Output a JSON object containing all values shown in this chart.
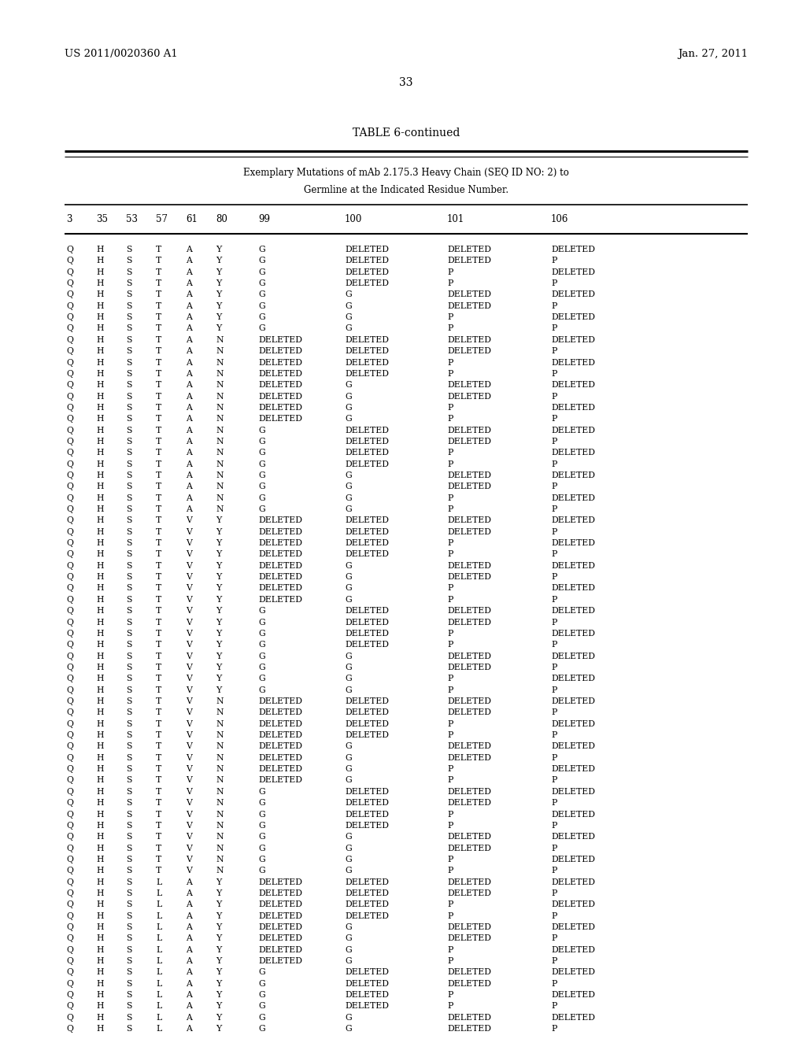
{
  "header_left": "US 2011/0020360 A1",
  "header_right": "Jan. 27, 2011",
  "page_number": "33",
  "table_title": "TABLE 6-continued",
  "table_subtitle1": "Exemplary Mutations of mAb 2.175.3 Heavy Chain (SEQ ID NO: 2) to",
  "table_subtitle2": "Germline at the Indicated Residue Number.",
  "col_headers": [
    "3",
    "35",
    "53",
    "57",
    "61",
    "80",
    "99",
    "100",
    "101",
    "106"
  ],
  "rows": [
    [
      "Q",
      "H",
      "S",
      "T",
      "A",
      "Y",
      "G",
      "DELETED",
      "DELETED",
      "DELETED"
    ],
    [
      "Q",
      "H",
      "S",
      "T",
      "A",
      "Y",
      "G",
      "DELETED",
      "DELETED",
      "P"
    ],
    [
      "Q",
      "H",
      "S",
      "T",
      "A",
      "Y",
      "G",
      "DELETED",
      "P",
      "DELETED"
    ],
    [
      "Q",
      "H",
      "S",
      "T",
      "A",
      "Y",
      "G",
      "DELETED",
      "P",
      "P"
    ],
    [
      "Q",
      "H",
      "S",
      "T",
      "A",
      "Y",
      "G",
      "G",
      "DELETED",
      "DELETED"
    ],
    [
      "Q",
      "H",
      "S",
      "T",
      "A",
      "Y",
      "G",
      "G",
      "DELETED",
      "P"
    ],
    [
      "Q",
      "H",
      "S",
      "T",
      "A",
      "Y",
      "G",
      "G",
      "P",
      "DELETED"
    ],
    [
      "Q",
      "H",
      "S",
      "T",
      "A",
      "Y",
      "G",
      "G",
      "P",
      "P"
    ],
    [
      "Q",
      "H",
      "S",
      "T",
      "A",
      "N",
      "DELETED",
      "DELETED",
      "DELETED",
      "DELETED"
    ],
    [
      "Q",
      "H",
      "S",
      "T",
      "A",
      "N",
      "DELETED",
      "DELETED",
      "DELETED",
      "P"
    ],
    [
      "Q",
      "H",
      "S",
      "T",
      "A",
      "N",
      "DELETED",
      "DELETED",
      "P",
      "DELETED"
    ],
    [
      "Q",
      "H",
      "S",
      "T",
      "A",
      "N",
      "DELETED",
      "DELETED",
      "P",
      "P"
    ],
    [
      "Q",
      "H",
      "S",
      "T",
      "A",
      "N",
      "DELETED",
      "G",
      "DELETED",
      "DELETED"
    ],
    [
      "Q",
      "H",
      "S",
      "T",
      "A",
      "N",
      "DELETED",
      "G",
      "DELETED",
      "P"
    ],
    [
      "Q",
      "H",
      "S",
      "T",
      "A",
      "N",
      "DELETED",
      "G",
      "P",
      "DELETED"
    ],
    [
      "Q",
      "H",
      "S",
      "T",
      "A",
      "N",
      "DELETED",
      "G",
      "P",
      "P"
    ],
    [
      "Q",
      "H",
      "S",
      "T",
      "A",
      "N",
      "G",
      "DELETED",
      "DELETED",
      "DELETED"
    ],
    [
      "Q",
      "H",
      "S",
      "T",
      "A",
      "N",
      "G",
      "DELETED",
      "DELETED",
      "P"
    ],
    [
      "Q",
      "H",
      "S",
      "T",
      "A",
      "N",
      "G",
      "DELETED",
      "P",
      "DELETED"
    ],
    [
      "Q",
      "H",
      "S",
      "T",
      "A",
      "N",
      "G",
      "DELETED",
      "P",
      "P"
    ],
    [
      "Q",
      "H",
      "S",
      "T",
      "A",
      "N",
      "G",
      "G",
      "DELETED",
      "DELETED"
    ],
    [
      "Q",
      "H",
      "S",
      "T",
      "A",
      "N",
      "G",
      "G",
      "DELETED",
      "P"
    ],
    [
      "Q",
      "H",
      "S",
      "T",
      "A",
      "N",
      "G",
      "G",
      "P",
      "DELETED"
    ],
    [
      "Q",
      "H",
      "S",
      "T",
      "A",
      "N",
      "G",
      "G",
      "P",
      "P"
    ],
    [
      "Q",
      "H",
      "S",
      "T",
      "V",
      "Y",
      "DELETED",
      "DELETED",
      "DELETED",
      "DELETED"
    ],
    [
      "Q",
      "H",
      "S",
      "T",
      "V",
      "Y",
      "DELETED",
      "DELETED",
      "DELETED",
      "P"
    ],
    [
      "Q",
      "H",
      "S",
      "T",
      "V",
      "Y",
      "DELETED",
      "DELETED",
      "P",
      "DELETED"
    ],
    [
      "Q",
      "H",
      "S",
      "T",
      "V",
      "Y",
      "DELETED",
      "DELETED",
      "P",
      "P"
    ],
    [
      "Q",
      "H",
      "S",
      "T",
      "V",
      "Y",
      "DELETED",
      "G",
      "DELETED",
      "DELETED"
    ],
    [
      "Q",
      "H",
      "S",
      "T",
      "V",
      "Y",
      "DELETED",
      "G",
      "DELETED",
      "P"
    ],
    [
      "Q",
      "H",
      "S",
      "T",
      "V",
      "Y",
      "DELETED",
      "G",
      "P",
      "DELETED"
    ],
    [
      "Q",
      "H",
      "S",
      "T",
      "V",
      "Y",
      "DELETED",
      "G",
      "P",
      "P"
    ],
    [
      "Q",
      "H",
      "S",
      "T",
      "V",
      "Y",
      "G",
      "DELETED",
      "DELETED",
      "DELETED"
    ],
    [
      "Q",
      "H",
      "S",
      "T",
      "V",
      "Y",
      "G",
      "DELETED",
      "DELETED",
      "P"
    ],
    [
      "Q",
      "H",
      "S",
      "T",
      "V",
      "Y",
      "G",
      "DELETED",
      "P",
      "DELETED"
    ],
    [
      "Q",
      "H",
      "S",
      "T",
      "V",
      "Y",
      "G",
      "DELETED",
      "P",
      "P"
    ],
    [
      "Q",
      "H",
      "S",
      "T",
      "V",
      "Y",
      "G",
      "G",
      "DELETED",
      "DELETED"
    ],
    [
      "Q",
      "H",
      "S",
      "T",
      "V",
      "Y",
      "G",
      "G",
      "DELETED",
      "P"
    ],
    [
      "Q",
      "H",
      "S",
      "T",
      "V",
      "Y",
      "G",
      "G",
      "P",
      "DELETED"
    ],
    [
      "Q",
      "H",
      "S",
      "T",
      "V",
      "Y",
      "G",
      "G",
      "P",
      "P"
    ],
    [
      "Q",
      "H",
      "S",
      "T",
      "V",
      "N",
      "DELETED",
      "DELETED",
      "DELETED",
      "DELETED"
    ],
    [
      "Q",
      "H",
      "S",
      "T",
      "V",
      "N",
      "DELETED",
      "DELETED",
      "DELETED",
      "P"
    ],
    [
      "Q",
      "H",
      "S",
      "T",
      "V",
      "N",
      "DELETED",
      "DELETED",
      "P",
      "DELETED"
    ],
    [
      "Q",
      "H",
      "S",
      "T",
      "V",
      "N",
      "DELETED",
      "DELETED",
      "P",
      "P"
    ],
    [
      "Q",
      "H",
      "S",
      "T",
      "V",
      "N",
      "DELETED",
      "G",
      "DELETED",
      "DELETED"
    ],
    [
      "Q",
      "H",
      "S",
      "T",
      "V",
      "N",
      "DELETED",
      "G",
      "DELETED",
      "P"
    ],
    [
      "Q",
      "H",
      "S",
      "T",
      "V",
      "N",
      "DELETED",
      "G",
      "P",
      "DELETED"
    ],
    [
      "Q",
      "H",
      "S",
      "T",
      "V",
      "N",
      "DELETED",
      "G",
      "P",
      "P"
    ],
    [
      "Q",
      "H",
      "S",
      "T",
      "V",
      "N",
      "G",
      "DELETED",
      "DELETED",
      "DELETED"
    ],
    [
      "Q",
      "H",
      "S",
      "T",
      "V",
      "N",
      "G",
      "DELETED",
      "DELETED",
      "P"
    ],
    [
      "Q",
      "H",
      "S",
      "T",
      "V",
      "N",
      "G",
      "DELETED",
      "P",
      "DELETED"
    ],
    [
      "Q",
      "H",
      "S",
      "T",
      "V",
      "N",
      "G",
      "DELETED",
      "P",
      "P"
    ],
    [
      "Q",
      "H",
      "S",
      "T",
      "V",
      "N",
      "G",
      "G",
      "DELETED",
      "DELETED"
    ],
    [
      "Q",
      "H",
      "S",
      "T",
      "V",
      "N",
      "G",
      "G",
      "DELETED",
      "P"
    ],
    [
      "Q",
      "H",
      "S",
      "T",
      "V",
      "N",
      "G",
      "G",
      "P",
      "DELETED"
    ],
    [
      "Q",
      "H",
      "S",
      "T",
      "V",
      "N",
      "G",
      "G",
      "P",
      "P"
    ],
    [
      "Q",
      "H",
      "S",
      "L",
      "A",
      "Y",
      "DELETED",
      "DELETED",
      "DELETED",
      "DELETED"
    ],
    [
      "Q",
      "H",
      "S",
      "L",
      "A",
      "Y",
      "DELETED",
      "DELETED",
      "DELETED",
      "P"
    ],
    [
      "Q",
      "H",
      "S",
      "L",
      "A",
      "Y",
      "DELETED",
      "DELETED",
      "P",
      "DELETED"
    ],
    [
      "Q",
      "H",
      "S",
      "L",
      "A",
      "Y",
      "DELETED",
      "DELETED",
      "P",
      "P"
    ],
    [
      "Q",
      "H",
      "S",
      "L",
      "A",
      "Y",
      "DELETED",
      "G",
      "DELETED",
      "DELETED"
    ],
    [
      "Q",
      "H",
      "S",
      "L",
      "A",
      "Y",
      "DELETED",
      "G",
      "DELETED",
      "P"
    ],
    [
      "Q",
      "H",
      "S",
      "L",
      "A",
      "Y",
      "DELETED",
      "G",
      "P",
      "DELETED"
    ],
    [
      "Q",
      "H",
      "S",
      "L",
      "A",
      "Y",
      "DELETED",
      "G",
      "P",
      "P"
    ],
    [
      "Q",
      "H",
      "S",
      "L",
      "A",
      "Y",
      "G",
      "DELETED",
      "DELETED",
      "DELETED"
    ],
    [
      "Q",
      "H",
      "S",
      "L",
      "A",
      "Y",
      "G",
      "DELETED",
      "DELETED",
      "P"
    ],
    [
      "Q",
      "H",
      "S",
      "L",
      "A",
      "Y",
      "G",
      "DELETED",
      "P",
      "DELETED"
    ],
    [
      "Q",
      "H",
      "S",
      "L",
      "A",
      "Y",
      "G",
      "DELETED",
      "P",
      "P"
    ],
    [
      "Q",
      "H",
      "S",
      "L",
      "A",
      "Y",
      "G",
      "G",
      "DELETED",
      "DELETED"
    ],
    [
      "Q",
      "H",
      "S",
      "L",
      "A",
      "Y",
      "G",
      "G",
      "DELETED",
      "P"
    ]
  ]
}
